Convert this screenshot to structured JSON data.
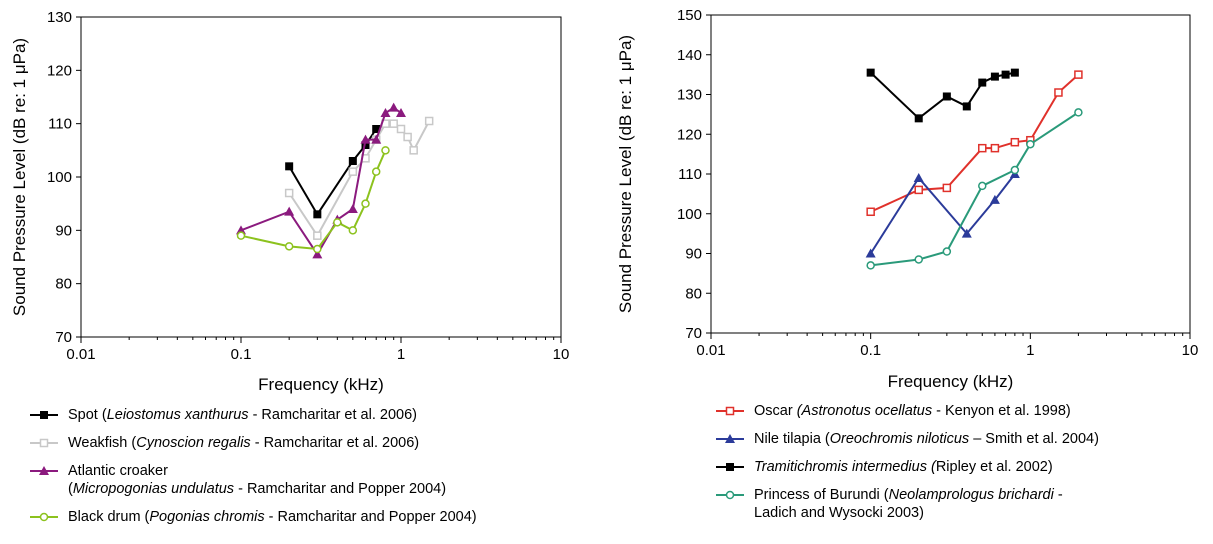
{
  "charts": [
    {
      "id": "left",
      "chart_data": {
        "type": "line",
        "xscale": "log",
        "xlim": [
          0.01,
          10
        ],
        "ylim": [
          70,
          130
        ],
        "yticks": [
          70,
          80,
          90,
          100,
          110,
          120,
          130
        ],
        "xticks": [
          {
            "value": 0.01,
            "label": "0.01"
          },
          {
            "value": 0.1,
            "label": "0.1"
          },
          {
            "value": 1,
            "label": "1"
          },
          {
            "value": 10,
            "label": "10"
          }
        ],
        "xlabel": "Frequency (kHz)",
        "ylabel": "Sound Pressure Level (dB re: 1 μPa)",
        "grid": false,
        "series": [
          {
            "name": "Spot",
            "color": "#000000",
            "marker": "square-filled",
            "x": [
              0.2,
              0.3,
              0.5,
              0.6,
              0.7
            ],
            "y": [
              102,
              93,
              103,
              106,
              109
            ]
          },
          {
            "name": "Weakfish",
            "color": "#c8c8c8",
            "marker": "square-open",
            "x": [
              0.2,
              0.3,
              0.5,
              0.6,
              0.7,
              0.8,
              0.9,
              1.0,
              1.1,
              1.2,
              1.5
            ],
            "y": [
              97,
              89,
              101,
              103.5,
              107,
              110,
              110,
              109,
              107.5,
              105,
              110.5
            ]
          },
          {
            "name": "Atlantic croaker",
            "color": "#8b1a7e",
            "marker": "triangle-filled",
            "x": [
              0.1,
              0.2,
              0.3,
              0.4,
              0.5,
              0.6,
              0.7,
              0.8,
              0.9,
              1.0
            ],
            "y": [
              90,
              93.5,
              85.5,
              92,
              94,
              107,
              107,
              112,
              113,
              112
            ]
          },
          {
            "name": "Black drum",
            "color": "#8cc21e",
            "marker": "circle-open",
            "x": [
              0.1,
              0.2,
              0.3,
              0.4,
              0.5,
              0.6,
              0.7,
              0.8
            ],
            "y": [
              89,
              87,
              86.5,
              91.5,
              90,
              95,
              101,
              105
            ]
          }
        ]
      },
      "legend": [
        {
          "pre": "Spot (",
          "ital": "Leiostomus xanthurus",
          "post": " - Ramcharitar et al. 2006)",
          "line2": ""
        },
        {
          "pre": "Weakfish (",
          "ital": "Cynoscion regalis",
          "post": " - Ramcharitar et al. 2006)",
          "line2": ""
        },
        {
          "pre": "Atlantic croaker",
          "ital": "",
          "post": "",
          "line2_pre": "(",
          "line2_ital": "Micropogonias undulatus",
          "line2_post": " - Ramcharitar and Popper 2004)"
        },
        {
          "pre": "Black drum (",
          "ital": "Pogonias chromis",
          "post": " - Ramcharitar and Popper 2004)",
          "line2": ""
        }
      ]
    },
    {
      "id": "right",
      "chart_data": {
        "type": "line",
        "xscale": "log",
        "xlim": [
          0.01,
          10
        ],
        "ylim": [
          70,
          150
        ],
        "yticks": [
          70,
          80,
          90,
          100,
          110,
          120,
          130,
          140,
          150
        ],
        "xticks": [
          {
            "value": 0.01,
            "label": "0.01"
          },
          {
            "value": 0.1,
            "label": "0.1"
          },
          {
            "value": 1,
            "label": "1"
          },
          {
            "value": 10,
            "label": "10"
          }
        ],
        "xlabel": "Frequency (kHz)",
        "ylabel": "Sound Pressure Level (dB re: 1 μPa)",
        "grid": false,
        "series": [
          {
            "name": "Oscar",
            "color": "#e0312b",
            "marker": "square-open",
            "x": [
              0.1,
              0.2,
              0.3,
              0.5,
              0.6,
              0.8,
              1.0,
              1.5,
              2.0
            ],
            "y": [
              100.5,
              106,
              106.5,
              116.5,
              116.5,
              118,
              118.5,
              130.5,
              135
            ]
          },
          {
            "name": "Nile tilapia",
            "color": "#2b3b9a",
            "marker": "triangle-filled",
            "x": [
              0.1,
              0.2,
              0.4,
              0.6,
              0.8
            ],
            "y": [
              90,
              109,
              95,
              103.5,
              110
            ]
          },
          {
            "name": "Tramitichromis intermedius",
            "color": "#000000",
            "marker": "square-filled",
            "x": [
              0.1,
              0.2,
              0.3,
              0.4,
              0.5,
              0.6,
              0.7,
              0.8
            ],
            "y": [
              135.5,
              124,
              129.5,
              127,
              133,
              134.5,
              135,
              135.5
            ]
          },
          {
            "name": "Princess of Burundi",
            "color": "#2a9a7a",
            "marker": "circle-open",
            "x": [
              0.1,
              0.2,
              0.3,
              0.5,
              0.8,
              1.0,
              2.0
            ],
            "y": [
              87,
              88.5,
              90.5,
              107,
              111,
              117.5,
              125.5
            ]
          }
        ]
      },
      "legend": [
        {
          "pre": "Oscar ",
          "ital": "(Astronotus ocellatus",
          "post": " - Kenyon et al. 1998)",
          "line2": ""
        },
        {
          "pre": "Nile tilapia (",
          "ital": "Oreochromis niloticus",
          "post": " – Smith et al. 2004)",
          "line2": ""
        },
        {
          "pre": "",
          "ital": "Tramitichromis intermedius (",
          "post": "Ripley et al. 2002)",
          "line2": ""
        },
        {
          "pre": "Princess of Burundi (",
          "ital": "Neolamprologus brichardi",
          "post": " -",
          "line2_pre": "Ladich and Wysocki 2003)",
          "line2_ital": "",
          "line2_post": ""
        }
      ]
    }
  ]
}
